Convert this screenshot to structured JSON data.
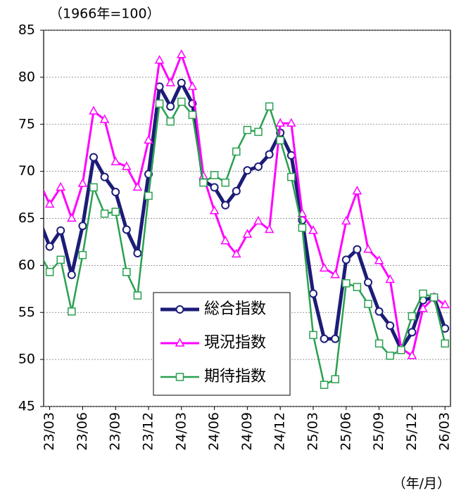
{
  "chart_data": {
    "type": "line",
    "title": "（1966年=100）",
    "x_label": "（年/月）",
    "categories": [
      null,
      "23/03",
      null,
      null,
      "23/06",
      null,
      null,
      "23/09",
      null,
      null,
      "23/12",
      null,
      null,
      "24/03",
      null,
      null,
      "24/06",
      null,
      null,
      "24/09",
      null,
      null,
      "24/12",
      null,
      null,
      "25/03",
      null,
      null,
      "25/06",
      null,
      null,
      "25/09",
      null,
      null,
      "25/12",
      null,
      null,
      "26/03"
    ],
    "ylim": [
      45,
      85
    ],
    "yticks": [
      45,
      50,
      55,
      60,
      65,
      70,
      75,
      80,
      85
    ],
    "grid": true,
    "legend": "center",
    "series": [
      {
        "name": "総合指数",
        "color": "#1c1c78",
        "marker": "circle",
        "values": [
          65.0,
          62.0,
          63.7,
          59.0,
          64.2,
          71.5,
          69.4,
          67.8,
          63.8,
          61.3,
          69.7,
          79.0,
          76.9,
          79.4,
          77.2,
          69.0,
          68.3,
          66.4,
          67.9,
          70.1,
          70.5,
          71.8,
          74.1,
          71.7,
          64.8,
          57.0,
          52.2,
          52.2,
          60.6,
          61.7,
          58.2,
          55.1,
          53.6,
          51.1,
          52.9,
          56.3,
          56.6,
          53.3
        ]
      },
      {
        "name": "現況指数",
        "color": "#ff00ff",
        "marker": "triangle",
        "values": [
          69.0,
          66.5,
          68.3,
          65.0,
          68.7,
          76.4,
          75.5,
          71.0,
          70.5,
          68.3,
          73.3,
          81.8,
          79.4,
          82.4,
          79.0,
          69.5,
          65.8,
          62.6,
          61.2,
          63.3,
          64.7,
          63.8,
          75.1,
          75.1,
          65.5,
          63.7,
          59.7,
          59.0,
          64.7,
          67.9,
          61.7,
          60.5,
          58.5,
          51.2,
          50.4,
          55.4,
          56.6,
          55.8
        ]
      },
      {
        "name": "期待指数",
        "color": "#2aa050",
        "marker": "square",
        "values": [
          61.5,
          59.3,
          60.6,
          55.1,
          61.1,
          68.3,
          65.5,
          65.7,
          59.3,
          56.8,
          67.4,
          77.2,
          75.3,
          77.4,
          76.0,
          68.8,
          69.6,
          68.8,
          72.1,
          74.4,
          74.2,
          76.9,
          73.3,
          69.4,
          64.0,
          52.6,
          47.3,
          47.9,
          58.1,
          57.7,
          55.9,
          51.7,
          50.4,
          51.0,
          54.6,
          57.0,
          56.6,
          51.7
        ]
      }
    ]
  }
}
